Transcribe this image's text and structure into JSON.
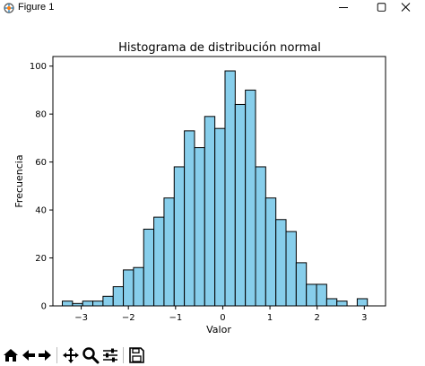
{
  "window": {
    "title": "Figure 1",
    "icons": [
      "figure-app-icon",
      "minimize-icon",
      "maximize-icon",
      "close-icon"
    ]
  },
  "toolbar": {
    "buttons": [
      "home-icon",
      "back-icon",
      "forward-icon",
      "pan-icon",
      "zoom-icon",
      "configure-subplots-icon",
      "save-icon"
    ]
  },
  "chart_data": {
    "type": "bar",
    "title": "Histograma de distribución normal",
    "xlabel": "Valor",
    "ylabel": "Frecuencia",
    "xlim": [
      -3.6,
      3.45
    ],
    "ylim": [
      0,
      104
    ],
    "xticks": [
      -3,
      -2,
      -1,
      0,
      1,
      2,
      3
    ],
    "yticks": [
      0,
      20,
      40,
      60,
      80,
      100
    ],
    "xtick_labels": [
      "−3",
      "−2",
      "−1",
      "0",
      "1",
      "2",
      "3"
    ],
    "ytick_labels": [
      "0",
      "20",
      "40",
      "60",
      "80",
      "100"
    ],
    "bin_start": -3.4,
    "bin_width": 0.2155,
    "values": [
      2,
      1,
      2,
      2,
      4,
      8,
      15,
      16,
      32,
      37,
      45,
      58,
      73,
      66,
      79,
      74,
      98,
      84,
      90,
      58,
      45,
      36,
      31,
      18,
      9,
      9,
      3,
      2,
      0,
      3
    ],
    "bar_color": "#87ceeb",
    "edge_color": "#000000",
    "grid": false
  }
}
